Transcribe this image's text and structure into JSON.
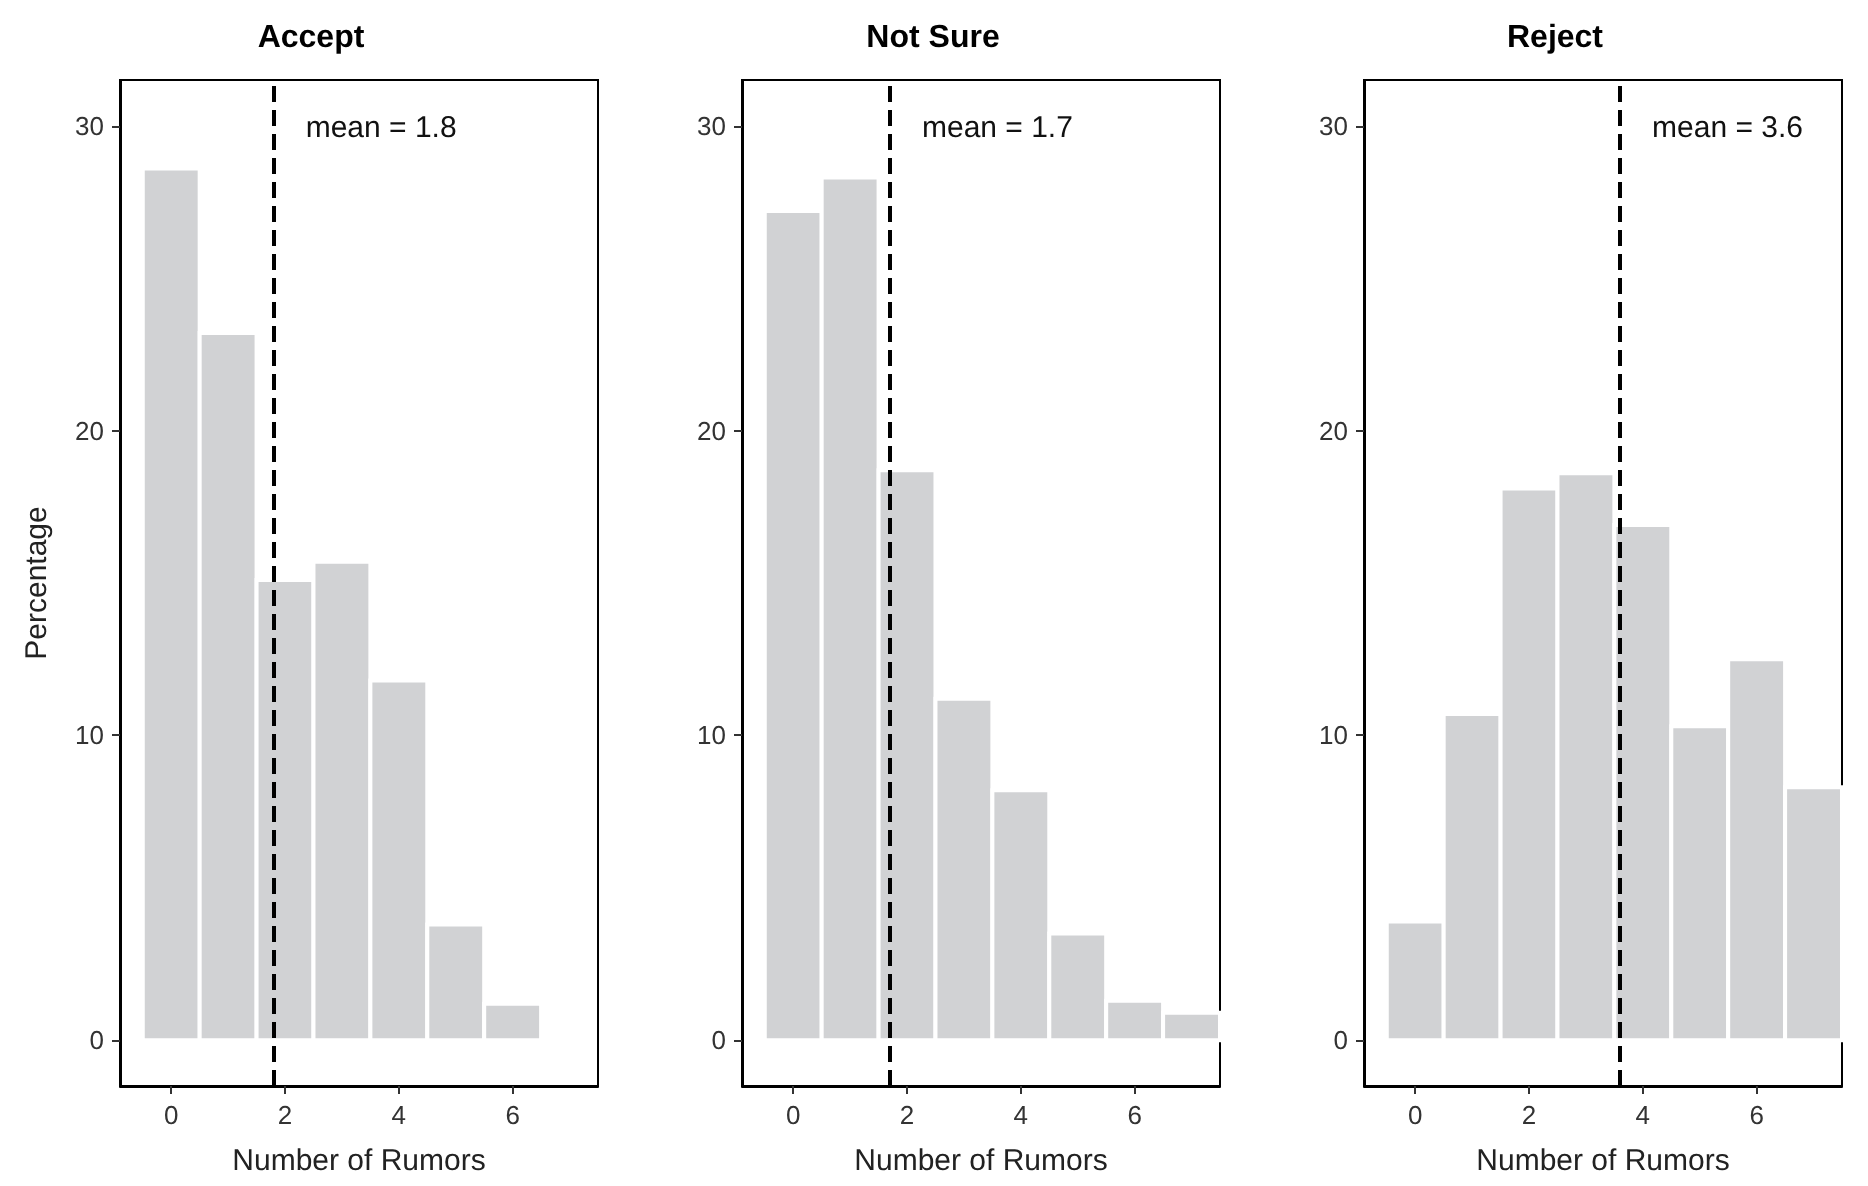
{
  "chart_data": [
    {
      "type": "histogram",
      "title": "Accept",
      "xlabel": "Number of Rumors",
      "ylabel": "Percentage",
      "bins": [
        -0.5,
        0.5,
        1.5,
        2.5,
        3.5,
        4.5,
        5.5,
        6.5
      ],
      "values": [
        28.6,
        23.2,
        15.1,
        15.7,
        11.8,
        3.8,
        1.2
      ],
      "color": "#d1d2d4",
      "xlim": [
        -0.9,
        7.5
      ],
      "ylim": [
        -1.5,
        31.5
      ],
      "xticks": [
        0,
        2,
        4,
        6
      ],
      "yticks": [
        0,
        10,
        20,
        30
      ],
      "grid": false,
      "ref_lines": [
        {
          "axis": "x",
          "value": 1.8,
          "label": "mean = 1.8",
          "color": "#000000",
          "line_style": "dashed"
        }
      ]
    },
    {
      "type": "histogram",
      "title": "Not Sure",
      "xlabel": "Number of Rumors",
      "bins": [
        -0.5,
        0.5,
        1.5,
        2.5,
        3.5,
        4.5,
        5.5,
        6.5,
        7.5
      ],
      "values": [
        27.2,
        28.3,
        18.7,
        11.2,
        8.2,
        3.5,
        1.3,
        0.9
      ],
      "color": "#d1d2d4",
      "xlim": [
        -0.9,
        7.5
      ],
      "ylim": [
        -1.5,
        31.5
      ],
      "xticks": [
        0,
        2,
        4,
        6
      ],
      "yticks": [
        0,
        10,
        20,
        30
      ],
      "grid": false,
      "ref_lines": [
        {
          "axis": "x",
          "value": 1.7,
          "label": "mean = 1.7",
          "color": "#000000",
          "line_style": "dashed"
        }
      ]
    },
    {
      "type": "histogram",
      "title": "Reject",
      "xlabel": "Number of Rumors",
      "bins": [
        -0.5,
        0.5,
        1.5,
        2.5,
        3.5,
        4.5,
        5.5,
        6.5,
        7.5
      ],
      "values": [
        3.9,
        10.7,
        18.1,
        18.6,
        16.9,
        10.3,
        12.5,
        8.3
      ],
      "color": "#d1d2d4",
      "xlim": [
        -0.9,
        7.5
      ],
      "ylim": [
        -1.5,
        31.5
      ],
      "xticks": [
        0,
        2,
        4,
        6
      ],
      "yticks": [
        0,
        10,
        20,
        30
      ],
      "grid": false,
      "ref_lines": [
        {
          "axis": "x",
          "value": 3.6,
          "label": "mean = 3.6",
          "color": "#000000",
          "line_style": "dashed"
        }
      ]
    }
  ]
}
